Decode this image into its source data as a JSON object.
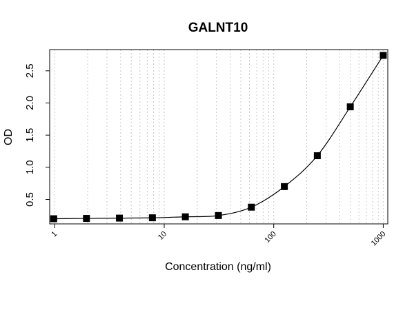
{
  "chart_data": {
    "type": "scatter",
    "title": "GALNT10",
    "xlabel": "Concentration (ng/ml)",
    "ylabel": "OD",
    "x_scale": "log",
    "xlim": [
      0.9,
      1100
    ],
    "ylim": [
      0.12,
      2.83
    ],
    "x_ticks": [
      1,
      10,
      100,
      1000
    ],
    "x_tick_labels": [
      "1",
      "10",
      "100",
      "1000"
    ],
    "y_ticks": [
      0.5,
      1.0,
      1.5,
      2.0,
      2.5
    ],
    "y_tick_labels": [
      "0.5",
      "1.0",
      "1.5",
      "2.0",
      "2.5"
    ],
    "grid": "vertical dotted lines at log minor ticks",
    "marker": "filled-square",
    "marker_color": "#000000",
    "fit_curve": "4-parameter logistic",
    "series": [
      {
        "x": [
          0.98,
          1.95,
          3.9,
          7.8,
          15.6,
          31.25,
          62.5,
          125,
          250,
          500,
          1000
        ],
        "y": [
          0.2,
          0.205,
          0.21,
          0.215,
          0.23,
          0.25,
          0.38,
          0.7,
          1.18,
          1.94,
          2.74
        ]
      }
    ]
  }
}
